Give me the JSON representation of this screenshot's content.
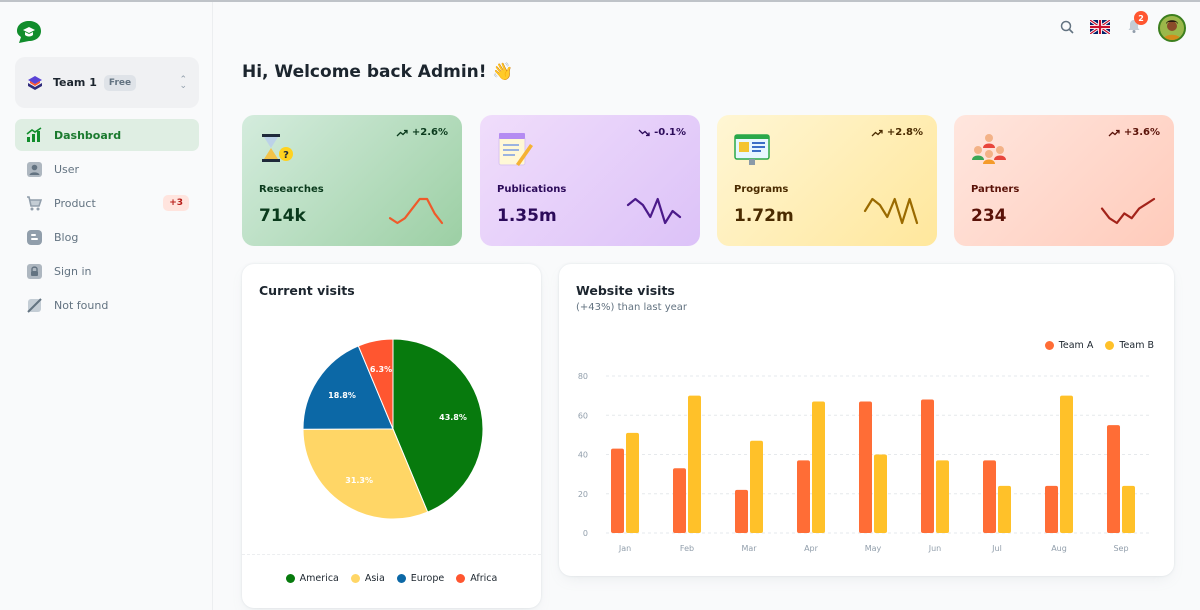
{
  "sidebar": {
    "team": {
      "name": "Team 1",
      "plan": "Free"
    },
    "items": [
      {
        "label": "Dashboard",
        "icon": "chart-icon",
        "active": true
      },
      {
        "label": "User",
        "icon": "user-icon"
      },
      {
        "label": "Product",
        "icon": "cart-icon",
        "badge": "+3"
      },
      {
        "label": "Blog",
        "icon": "blog-icon"
      },
      {
        "label": "Sign in",
        "icon": "lock-icon"
      },
      {
        "label": "Not found",
        "icon": "not-found-icon"
      }
    ]
  },
  "header": {
    "notification_count": "2"
  },
  "welcome": "Hi, Welcome back Admin! 👋",
  "stats": [
    {
      "label": "Researches",
      "value": "714k",
      "trend": "+2.6%",
      "direction": "up",
      "color": "#ef5a2a",
      "spark": [
        3,
        2,
        3,
        5,
        7,
        7,
        4,
        2
      ]
    },
    {
      "label": "Publications",
      "value": "1.35m",
      "trend": "-0.1%",
      "direction": "down",
      "color": "#4b1a8a",
      "spark": [
        5,
        6,
        5,
        3,
        6,
        2,
        4,
        3
      ]
    },
    {
      "label": "Programs",
      "value": "1.72m",
      "trend": "+2.8%",
      "direction": "up",
      "color": "#9a6a00",
      "spark": [
        4,
        6,
        5,
        3,
        6,
        2,
        6,
        2
      ]
    },
    {
      "label": "Partners",
      "value": "234",
      "trend": "+3.6%",
      "direction": "up",
      "color": "#a3231a",
      "spark": [
        5,
        3,
        2,
        4,
        3,
        5,
        6,
        7
      ]
    }
  ],
  "current_visits": {
    "title": "Current visits",
    "legend": [
      "America",
      "Asia",
      "Europe",
      "Africa"
    ]
  },
  "website_visits": {
    "title": "Website visits",
    "subtitle": "(+43%) than last year"
  },
  "chart_data": [
    {
      "type": "pie",
      "title": "Current visits",
      "categories": [
        "America",
        "Asia",
        "Europe",
        "Africa"
      ],
      "values": [
        43.8,
        31.3,
        18.8,
        6.3
      ],
      "labels": [
        "43.8%",
        "31.3%",
        "18.8%",
        "6.3%"
      ],
      "colors": [
        "#077a0d",
        "#ffd666",
        "#0c68a6",
        "#ff5630"
      ],
      "legend": "bottom"
    },
    {
      "type": "bar",
      "title": "Website visits",
      "subtitle": "(+43%) than last year",
      "categories": [
        "Jan",
        "Feb",
        "Mar",
        "Apr",
        "May",
        "Jun",
        "Jul",
        "Aug",
        "Sep"
      ],
      "series": [
        {
          "name": "Team A",
          "values": [
            43,
            33,
            22,
            37,
            67,
            68,
            37,
            24,
            55
          ],
          "color": "#ff6d36"
        },
        {
          "name": "Team B",
          "values": [
            51,
            70,
            47,
            67,
            40,
            37,
            24,
            70,
            24
          ],
          "color": "#ffc129"
        }
      ],
      "yticks": [
        "0",
        "20",
        "40",
        "60",
        "80"
      ],
      "ylim": [
        0,
        80
      ],
      "grid": true,
      "legend": "top-right"
    }
  ]
}
